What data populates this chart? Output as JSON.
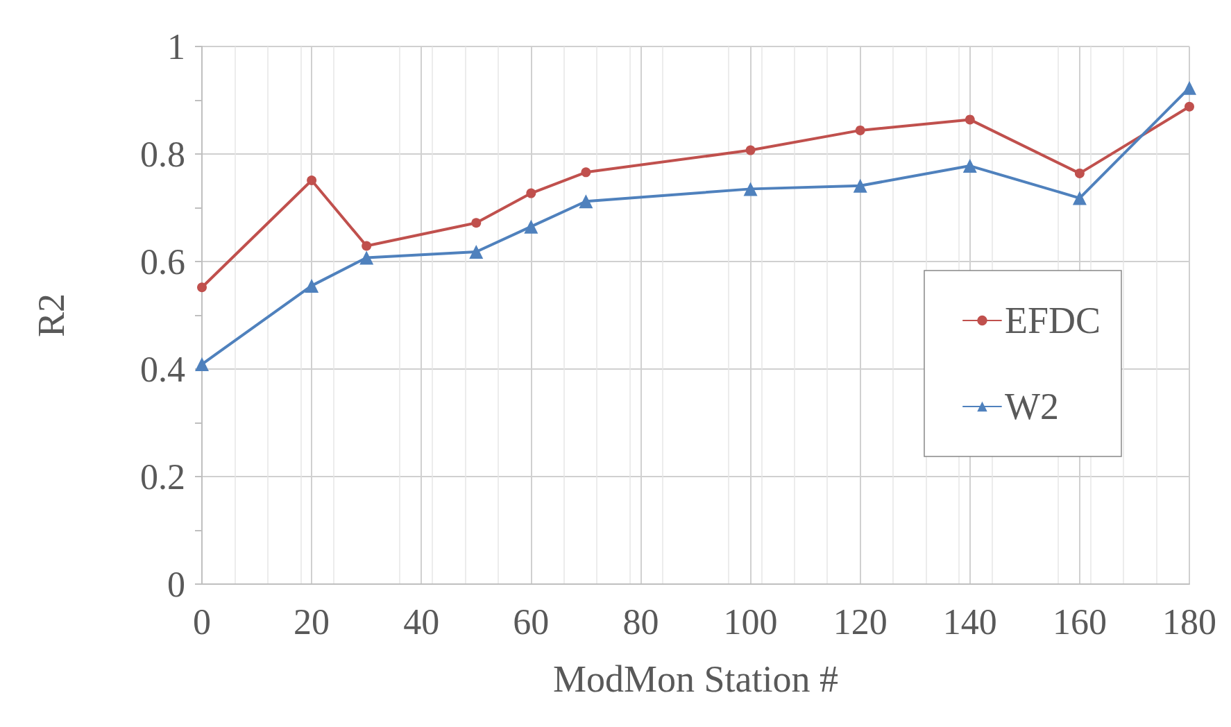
{
  "chart_data": {
    "type": "line",
    "xlabel": "ModMon Station #",
    "ylabel": "R2",
    "xlim": [
      0,
      180
    ],
    "xticks": [
      0,
      20,
      40,
      60,
      80,
      100,
      120,
      140,
      160,
      180
    ],
    "ylim": [
      0,
      1
    ],
    "yticks": [
      0,
      0.2,
      0.4,
      0.6,
      0.8,
      1
    ],
    "grid": true,
    "legend": "right",
    "line_style": "solid",
    "series": [
      {
        "name": "EFDC",
        "color": "#c0504d",
        "marker": "circle",
        "x": [
          0,
          20,
          30,
          50,
          60,
          70,
          100,
          120,
          140,
          160,
          180
        ],
        "values": [
          0.552,
          0.751,
          0.629,
          0.672,
          0.727,
          0.766,
          0.807,
          0.844,
          0.864,
          0.764,
          0.888
        ]
      },
      {
        "name": "W2",
        "color": "#4f81bd",
        "marker": "triangle",
        "x": [
          0,
          20,
          30,
          50,
          60,
          70,
          100,
          120,
          140,
          160,
          180
        ],
        "values": [
          0.409,
          0.555,
          0.607,
          0.618,
          0.665,
          0.712,
          0.735,
          0.741,
          0.778,
          0.718,
          0.923
        ]
      }
    ]
  }
}
